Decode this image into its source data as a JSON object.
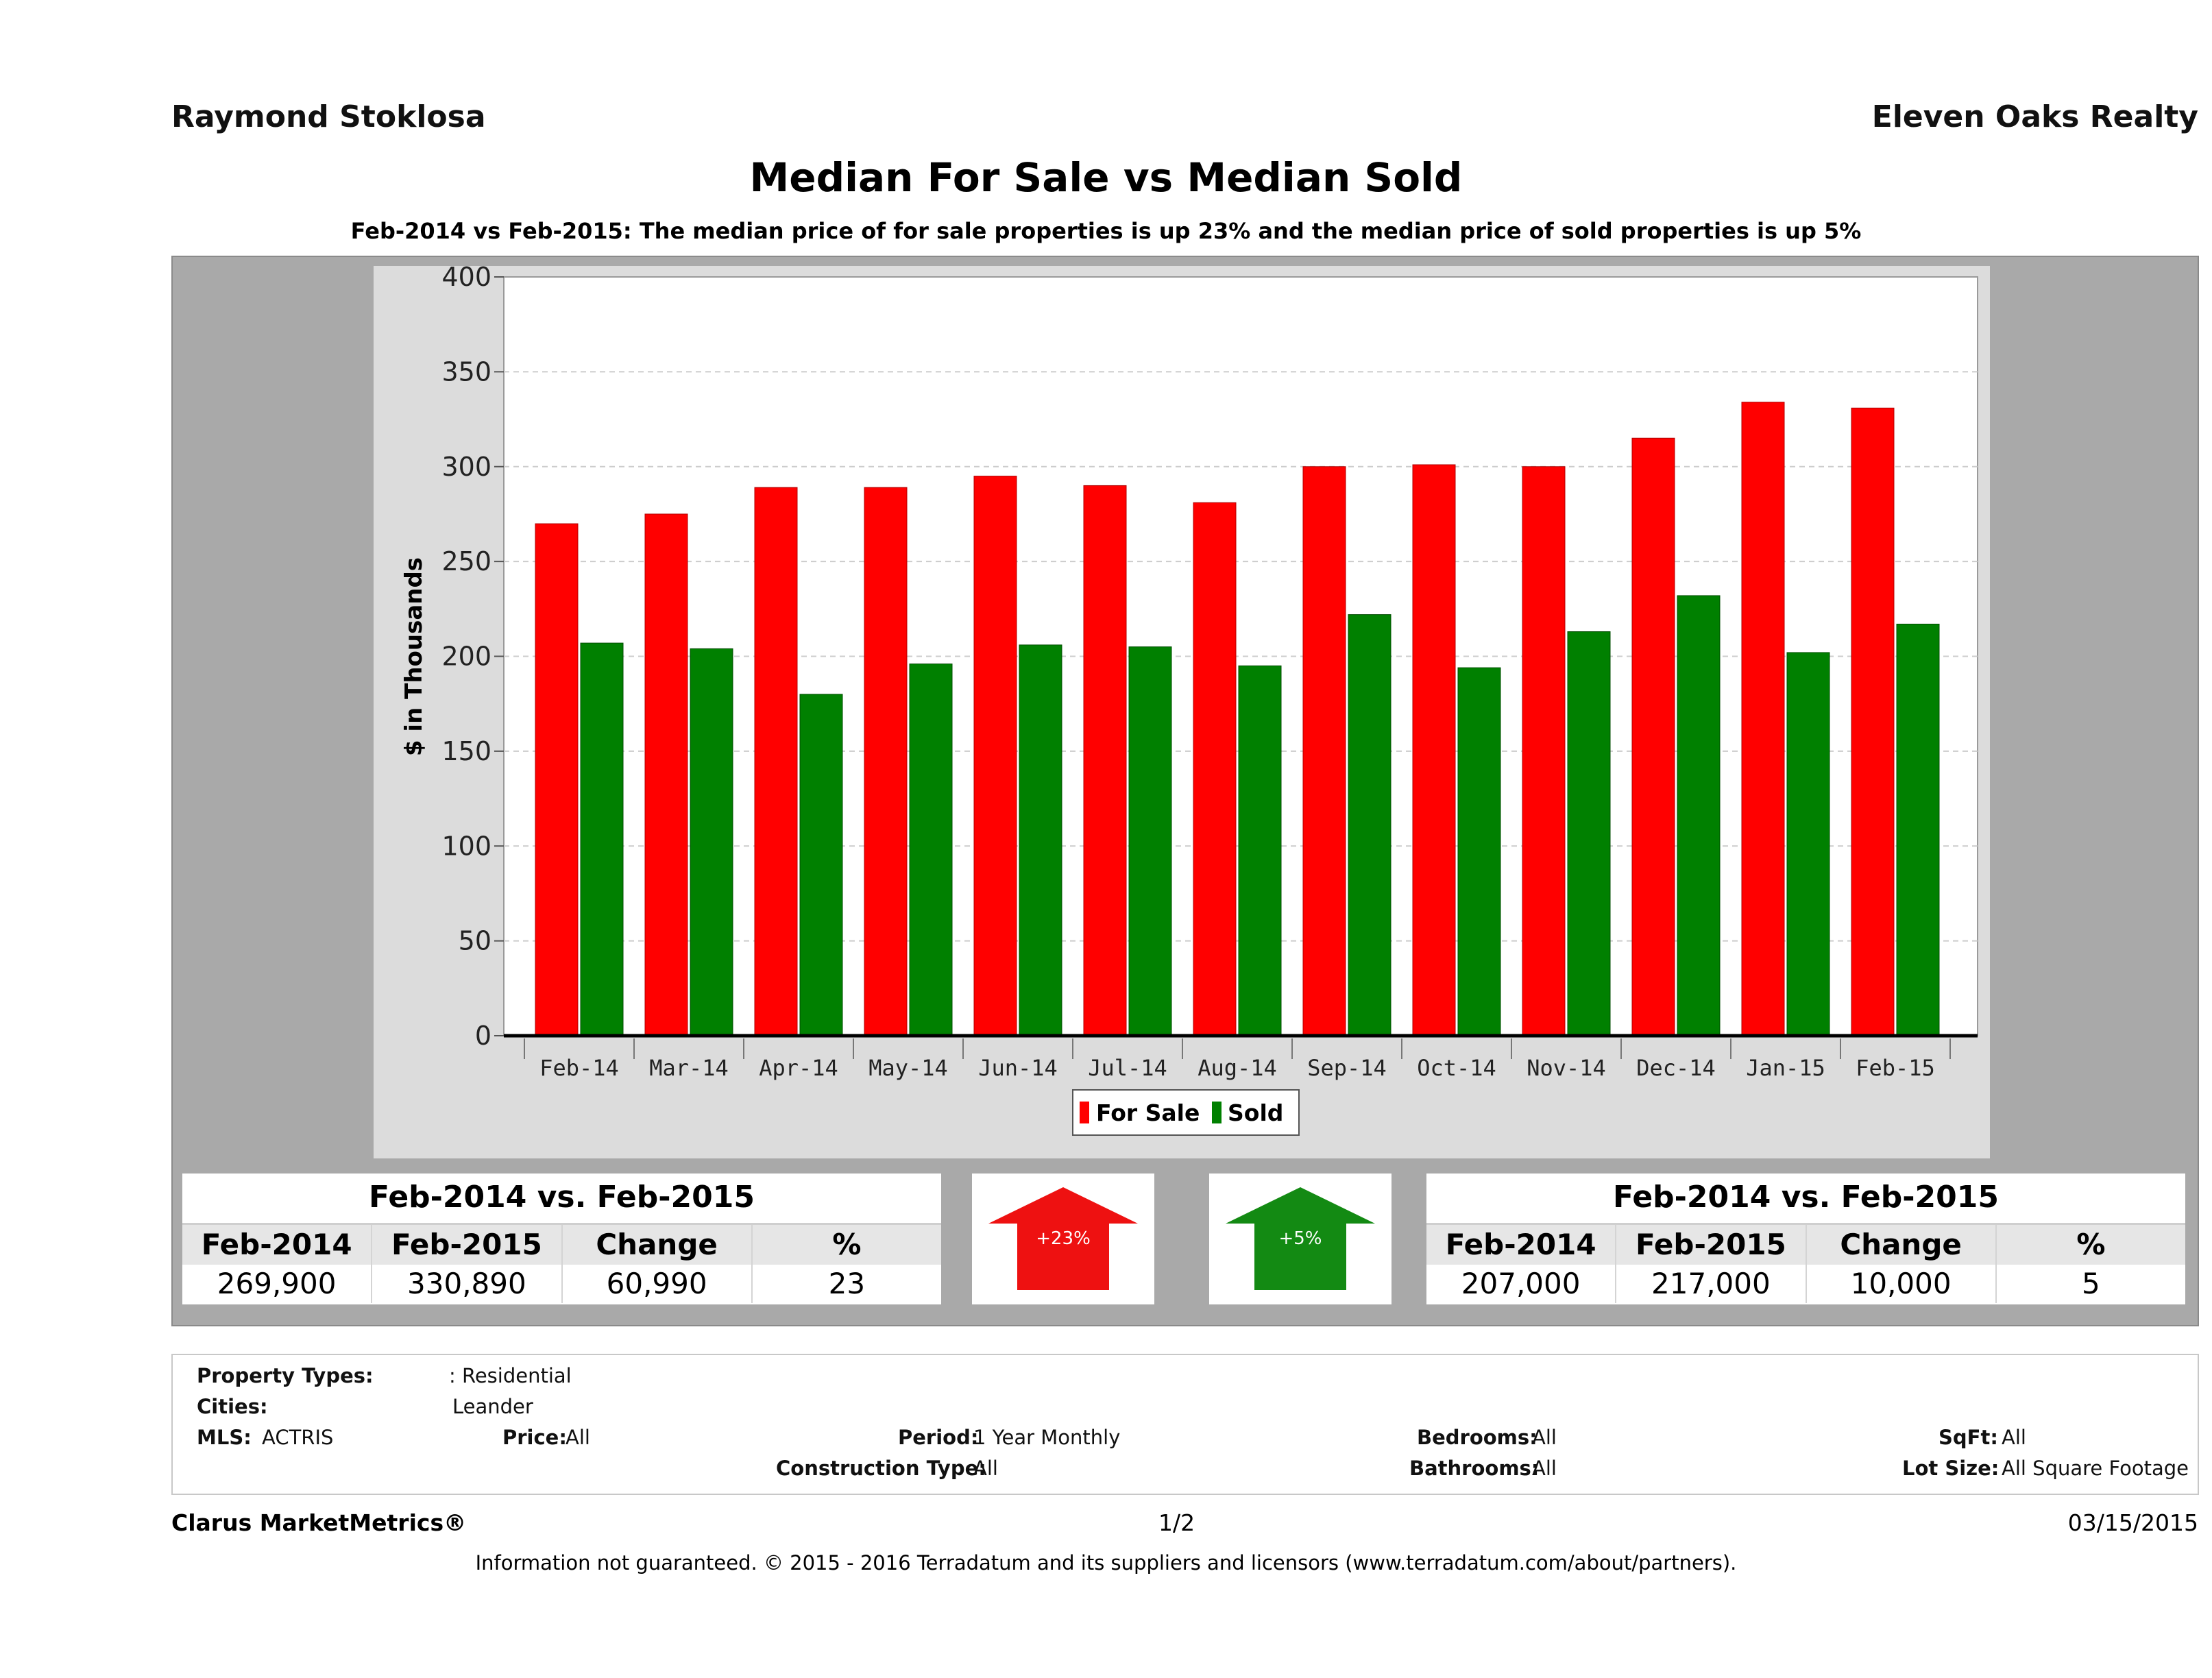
{
  "header": {
    "agent": "Raymond Stoklosa",
    "brokerage": "Eleven Oaks Realty",
    "title": "Median For Sale vs Median Sold",
    "subtitle": "Feb-2014 vs Feb-2015: The median price of for sale properties is up 23% and the median price of sold properties is up 5%"
  },
  "chart_data": {
    "type": "bar",
    "categories": [
      "Feb-14",
      "Mar-14",
      "Apr-14",
      "May-14",
      "Jun-14",
      "Jul-14",
      "Aug-14",
      "Sep-14",
      "Oct-14",
      "Nov-14",
      "Dec-14",
      "Jan-15",
      "Feb-15"
    ],
    "series": [
      {
        "name": "For Sale",
        "color": "#ff0000",
        "values": [
          269.9,
          275,
          289,
          289,
          295,
          290,
          281,
          300,
          301,
          300,
          315,
          334,
          330.89
        ]
      },
      {
        "name": "Sold",
        "color": "#008000",
        "values": [
          207,
          204,
          180,
          196,
          206,
          205,
          195,
          222,
          194,
          213,
          232,
          202,
          217
        ]
      }
    ],
    "ylabel": "$ in Thousands",
    "xlabel": "",
    "yticks": [
      0,
      50,
      100,
      150,
      200,
      250,
      300,
      350,
      400
    ],
    "ylim": [
      0,
      400
    ],
    "grid": true,
    "legend_position": "bottom-center"
  },
  "stats": {
    "for_sale": {
      "title": "Feb-2014 vs. Feb-2015",
      "headers": [
        "Feb-2014",
        "Feb-2015",
        "Change",
        "%"
      ],
      "values": [
        "269,900",
        "330,890",
        "60,990",
        "23"
      ],
      "arrow_label": "+23%",
      "arrow_color": "#ee1111"
    },
    "sold": {
      "title": "Feb-2014 vs. Feb-2015",
      "headers": [
        "Feb-2014",
        "Feb-2015",
        "Change",
        "%"
      ],
      "values": [
        "207,000",
        "217,000",
        "10,000",
        "5"
      ],
      "arrow_label": "+5%",
      "arrow_color": "#138a13"
    }
  },
  "info": {
    "property_types_label": "Property Types:",
    "property_types_value": ": Residential",
    "cities_label": "Cities:",
    "cities_value": "Leander",
    "mls_label": "MLS:",
    "mls_value": "ACTRIS",
    "price_label": "Price:",
    "price_value": "All",
    "period_label": "Period:",
    "period_value": "1 Year Monthly",
    "construction_label": "Construction Type:",
    "construction_value": "All",
    "bedrooms_label": "Bedrooms:",
    "bedrooms_value": "All",
    "bathrooms_label": "Bathrooms:",
    "bathrooms_value": "All",
    "sqft_label": "SqFt:",
    "sqft_value": "All",
    "lotsize_label": "Lot Size:",
    "lotsize_value": "All Square Footage"
  },
  "footer": {
    "brand": "Clarus MarketMetrics®",
    "page": "1/2",
    "date": "03/15/2015",
    "disclaimer": "Information not guaranteed. © 2015 - 2016 Terradatum and its suppliers and licensors (www.terradatum.com/about/partners)."
  }
}
